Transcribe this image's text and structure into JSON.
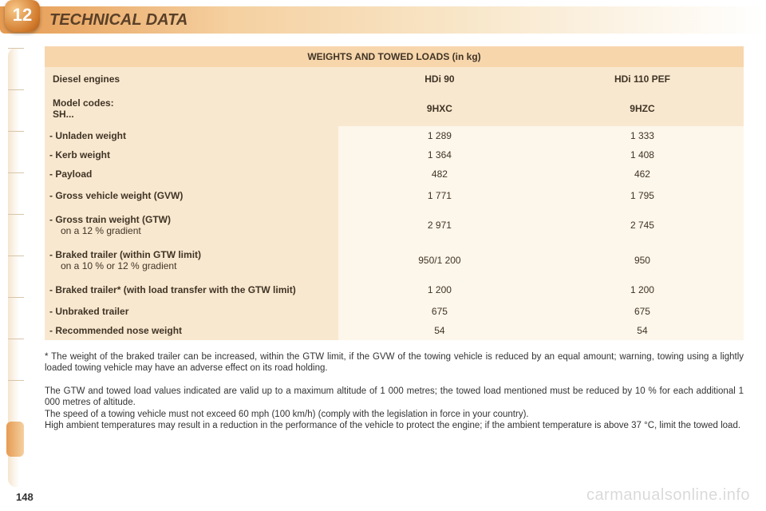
{
  "chapter_number": "12",
  "header_title": "TECHNICAL DATA",
  "colors": {
    "header_gradient_start": "#e69b52",
    "header_gradient_end": "#ffffff",
    "badge_dark": "#a85a1c",
    "badge_light": "#f8c888",
    "table_title_bg": "#f7d6ac",
    "table_head_bg": "#f9e8d0",
    "table_cell_bg": "#fdf6ea",
    "text_color": "#3f3425"
  },
  "fonts": {
    "header_title_size_pt": 15,
    "header_title_style": "bold italic",
    "badge_size_pt": 17,
    "table_size_pt": 9,
    "body_size_pt": 9
  },
  "table": {
    "title": "WEIGHTS AND TOWED LOADS (in kg)",
    "column_widths_pct": [
      42,
      29,
      29
    ],
    "header_rows": [
      {
        "label": "Diesel engines",
        "c1": "HDi 90",
        "c2": "HDi 110 PEF"
      },
      {
        "label": "Model codes:\nSH...",
        "c1": "9HXC",
        "c2": "9HZC"
      }
    ],
    "rows": [
      {
        "label": "-   Unladen weight",
        "c1": "1 289",
        "c2": "1 333"
      },
      {
        "label": "-   Kerb weight",
        "c1": "1 364",
        "c2": "1 408"
      },
      {
        "label": "-   Payload",
        "c1": "482",
        "c2": "462"
      },
      {
        "label": "-   Gross vehicle weight (GVW)",
        "c1": "1 771",
        "c2": "1 795",
        "tall": true
      },
      {
        "label": "-   Gross train weight (GTW)",
        "sub": "on a 12 % gradient",
        "c1": "2 971",
        "c2": "2 745",
        "tall": true
      },
      {
        "label": "-   Braked trailer (within GTW limit)",
        "sub": "on a 10 % or 12 % gradient",
        "c1": "950/1 200",
        "c2": "950",
        "tall": true
      },
      {
        "label": "-   Braked trailer* (with load transfer with the GTW limit)",
        "c1": "1 200",
        "c2": "1 200",
        "tall": true
      },
      {
        "label": "-   Unbraked trailer",
        "c1": "675",
        "c2": "675"
      },
      {
        "label": "-   Recommended nose weight",
        "c1": "54",
        "c2": "54"
      }
    ]
  },
  "footnote": "* The weight of the braked trailer can be increased, within the GTW limit, if the GVW of the towing vehicle is reduced by an equal amount; warning, towing using a lightly loaded towing vehicle may have an adverse effect on its road holding.",
  "body_text": "The GTW and towed load values indicated are valid up to a maximum altitude of 1 000 metres; the towed load mentioned must be reduced by 10 % for each additional 1 000 metres of altitude.\nThe speed of a towing vehicle must not exceed 60 mph (100 km/h) (comply with the legislation in force in your country).\nHigh ambient temperatures may result in a reduction in the performance of the vehicle to protect the engine; if the ambient temperature is above 37 °C, limit the towed load.",
  "page_number": "148",
  "watermark": "carmanualsonline.info"
}
